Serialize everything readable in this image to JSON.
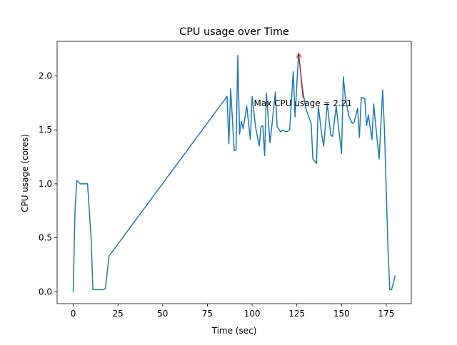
{
  "chart_data": {
    "type": "line",
    "title": "CPU usage over Time",
    "xlabel": "Time (sec)",
    "ylabel": "CPU usage (cores)",
    "color": "#1f77b4",
    "x": [
      0,
      1,
      2,
      4,
      6,
      8,
      10,
      11,
      13,
      15,
      17,
      18,
      20,
      86,
      87,
      88,
      90,
      91,
      92,
      93,
      94,
      95,
      97,
      99,
      100,
      102,
      104,
      105,
      106,
      107,
      108,
      110,
      111,
      113,
      114,
      116,
      117,
      119,
      121,
      123,
      124,
      126,
      128,
      130,
      133,
      134,
      136,
      137,
      139,
      140,
      142,
      144,
      145,
      147,
      150,
      151,
      152,
      154,
      156,
      157,
      159,
      160,
      161,
      163,
      164,
      165,
      167,
      168,
      169,
      171,
      173,
      174,
      176,
      177,
      178,
      180
    ],
    "values": [
      0,
      0.75,
      1.03,
      1.0,
      1.0,
      1.0,
      0.5,
      0.02,
      0.02,
      0.02,
      0.02,
      0.03,
      0.33,
      1.81,
      1.37,
      1.88,
      1.31,
      1.31,
      2.19,
      1.46,
      1.58,
      1.51,
      1.72,
      1.41,
      1.81,
      1.52,
      1.35,
      1.53,
      1.54,
      1.26,
      1.84,
      1.38,
      1.53,
      1.85,
      1.53,
      1.48,
      1.5,
      1.48,
      1.5,
      2.04,
      1.62,
      2.21,
      1.9,
      1.7,
      1.56,
      1.23,
      1.19,
      1.72,
      1.45,
      1.35,
      1.74,
      1.45,
      1.44,
      1.72,
      1.28,
      1.99,
      1.82,
      1.63,
      1.56,
      1.57,
      1.7,
      1.43,
      1.8,
      1.79,
      1.54,
      1.64,
      1.41,
      1.74,
      1.56,
      1.23,
      1.87,
      1.5,
      0.38,
      0.02,
      0.02,
      0.15
    ],
    "xlim": [
      -9,
      189
    ],
    "ylim": [
      -0.11,
      2.32
    ],
    "xticks": [
      0,
      25,
      50,
      75,
      100,
      125,
      150,
      175
    ],
    "yticks": [
      {
        "value": 0,
        "label": "0.0"
      },
      {
        "value": 0.5,
        "label": "0.5"
      },
      {
        "value": 1,
        "label": "1.0"
      },
      {
        "value": 1.5,
        "label": "1.5"
      },
      {
        "value": 2,
        "label": "2.0"
      }
    ],
    "annotation": {
      "text": "Max CPU usage = 2.21",
      "xy": [
        126,
        2.21
      ],
      "xytext": [
        101,
        1.72
      ],
      "color": "red"
    }
  }
}
